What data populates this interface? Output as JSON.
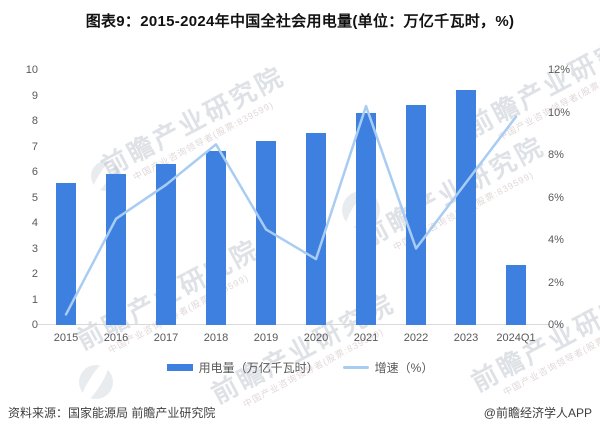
{
  "title": "图表9：2015-2024年中国全社会用电量(单位：万亿千瓦时，%)",
  "chart_data": {
    "type": "bar",
    "subtype": "combo-bar-line-dual-axis",
    "categories": [
      "2015",
      "2016",
      "2017",
      "2018",
      "2019",
      "2020",
      "2021",
      "2022",
      "2023",
      "2024Q1"
    ],
    "series": [
      {
        "name": "用电量（万亿千瓦时）",
        "type": "bar",
        "axis": "left",
        "color": "#3d80e0",
        "values": [
          5.55,
          5.92,
          6.31,
          6.84,
          7.23,
          7.51,
          8.31,
          8.64,
          9.22,
          2.34
        ]
      },
      {
        "name": "增速（%）",
        "type": "line",
        "axis": "right",
        "color": "#a9ccf2",
        "values": [
          0.5,
          5.0,
          6.6,
          8.5,
          4.5,
          3.1,
          10.3,
          3.6,
          6.7,
          9.8
        ]
      }
    ],
    "left_axis": {
      "min": 0,
      "max": 10,
      "step": 1,
      "suffix": ""
    },
    "right_axis": {
      "min": 0,
      "max": 12,
      "step": 2,
      "suffix": "%"
    },
    "grid": false,
    "legend_position": "bottom",
    "title": "图表9：2015-2024年中国全社会用电量(单位：万亿千瓦时，%)",
    "xlabel": "",
    "ylabel_left": "万亿千瓦时",
    "ylabel_right": "%"
  },
  "footer": {
    "source": "资料来源：国家能源局 前瞻产业研究院",
    "brand": "@前瞻经济学人APP"
  },
  "watermark": {
    "text": "前瞻产业研究院",
    "subtext": "中国产业咨询领导者(股票:839599)"
  },
  "colors": {
    "bar": "#3d80e0",
    "line": "#a9ccf2",
    "axis_text": "#595959",
    "axis_line": "#d9d9d9",
    "title_text": "#111111",
    "footer_text": "#404040"
  }
}
